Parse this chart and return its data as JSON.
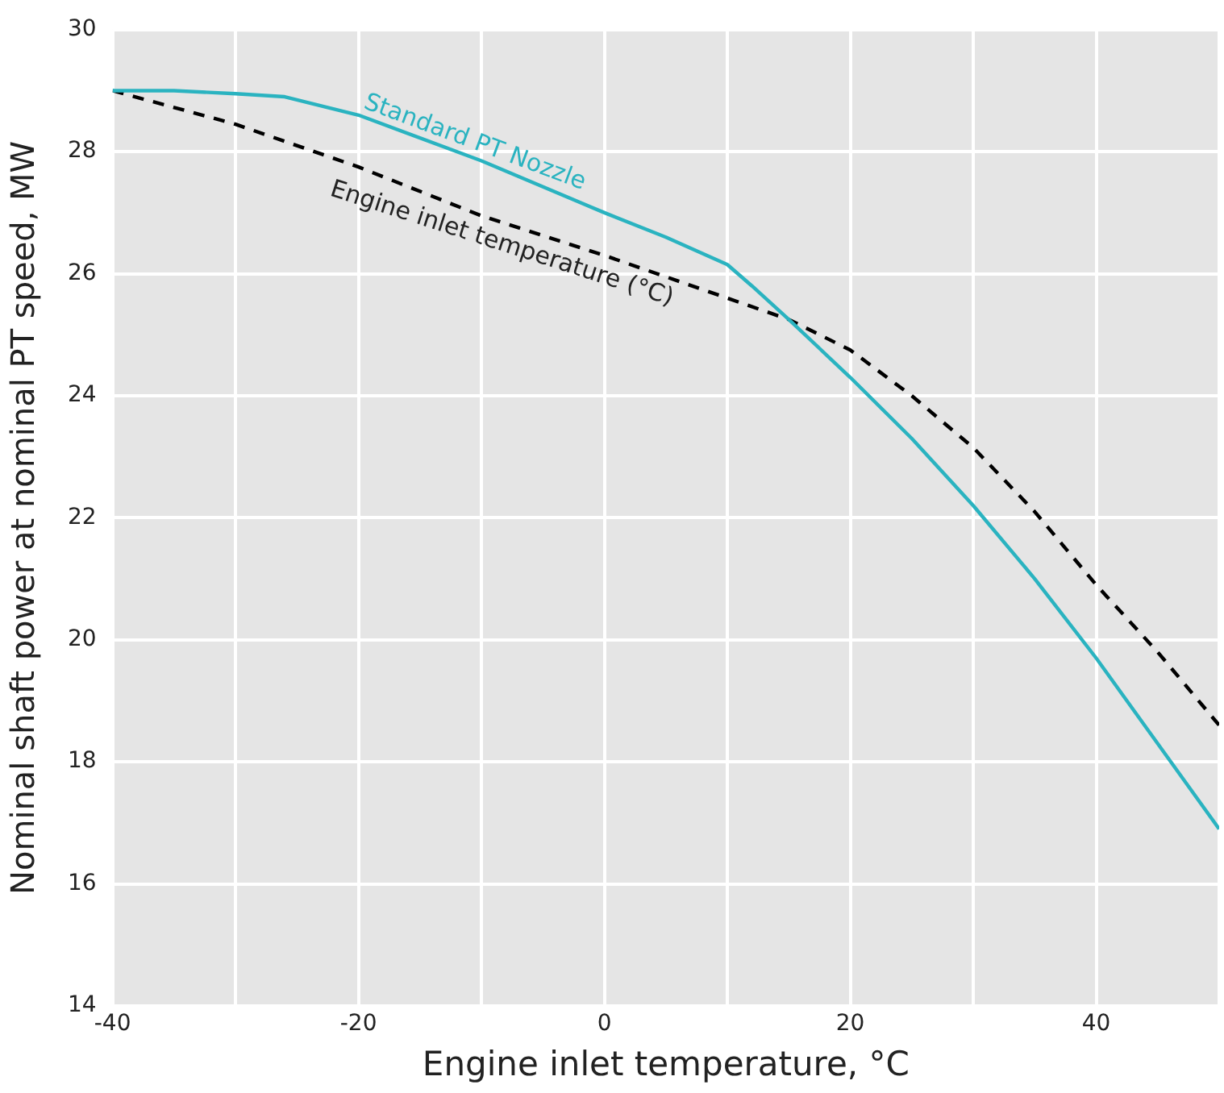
{
  "chart_data": {
    "type": "line",
    "xlabel": "Engine inlet temperature, °C",
    "ylabel": "Nominal shaft power at nominal PT speed, MW",
    "xlim": [
      -40,
      50
    ],
    "xticks": [
      -40,
      {
        "value": -30,
        "label": null
      },
      -20,
      {
        "value": -10,
        "label": null
      },
      0,
      {
        "value": 10,
        "label": null
      },
      20,
      {
        "value": 30,
        "label": null
      },
      40,
      {
        "value": 50,
        "label": null
      }
    ],
    "ylim": [
      14,
      30
    ],
    "yticks": [
      14,
      16,
      18,
      20,
      22,
      24,
      26,
      28,
      30
    ],
    "grid": true,
    "legend": false,
    "marker": "none",
    "series": [
      {
        "name": "Standard PT Nozzle",
        "color": "#2ab3c0",
        "line_style": "solid",
        "x": [
          -40,
          -35,
          -30,
          -26,
          -20,
          -10,
          0,
          5,
          10,
          12,
          15,
          20,
          25,
          30,
          35,
          40,
          45,
          50
        ],
        "values": [
          29.0,
          29.0,
          28.95,
          28.9,
          28.6,
          27.85,
          27.0,
          26.6,
          26.15,
          25.8,
          25.25,
          24.3,
          23.3,
          22.2,
          21.0,
          19.7,
          18.3,
          16.9
        ]
      },
      {
        "name": "Engine inlet temperature (°C)",
        "color": "#000000",
        "line_style": "dashed",
        "x": [
          -40,
          -30,
          -20,
          -10,
          0,
          10,
          15,
          20,
          25,
          30,
          35,
          40,
          45,
          50
        ],
        "values": [
          29.0,
          28.45,
          27.75,
          26.95,
          26.3,
          25.6,
          25.25,
          24.75,
          24.0,
          23.15,
          22.1,
          20.9,
          19.8,
          18.6
        ]
      }
    ]
  }
}
